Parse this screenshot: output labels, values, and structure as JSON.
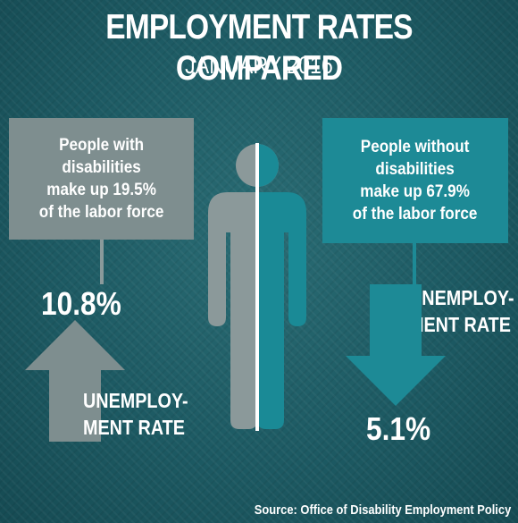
{
  "title": "EMPLOYMENT RATES COMPARED",
  "subtitle": "JANUARY 2016",
  "source": "Source: Office of Disability Employment Policy",
  "colors": {
    "with_disabilities": "#7e8e8f",
    "without_disabilities": "#1d8a96",
    "background": "#1d5a63"
  },
  "icons": {
    "figure": "person-icon",
    "increase": "arrow-up-icon",
    "decrease": "arrow-down-icon"
  },
  "chart_data": {
    "type": "table",
    "title": "EMPLOYMENT RATES COMPARED",
    "subtitle": "JANUARY 2016",
    "groups": [
      {
        "name": "People with disabilities",
        "labor_force_share_percent": 19.5,
        "unemployment_rate_percent": 10.8,
        "box_lines": [
          "People with",
          "disabilities",
          "make up 19.5%",
          "of the labor force"
        ],
        "value_label": "10.8%",
        "rate_lines": [
          "UNEMPLOY-",
          "MENT RATE"
        ],
        "direction": "up"
      },
      {
        "name": "People without disabilities",
        "labor_force_share_percent": 67.9,
        "unemployment_rate_percent": 5.1,
        "box_lines": [
          "People without",
          "disabilities",
          "make up 67.9%",
          "of the labor force"
        ],
        "value_label": "5.1%",
        "rate_lines": [
          "UNEMPLOY-",
          "MENT RATE"
        ],
        "direction": "down"
      }
    ]
  }
}
